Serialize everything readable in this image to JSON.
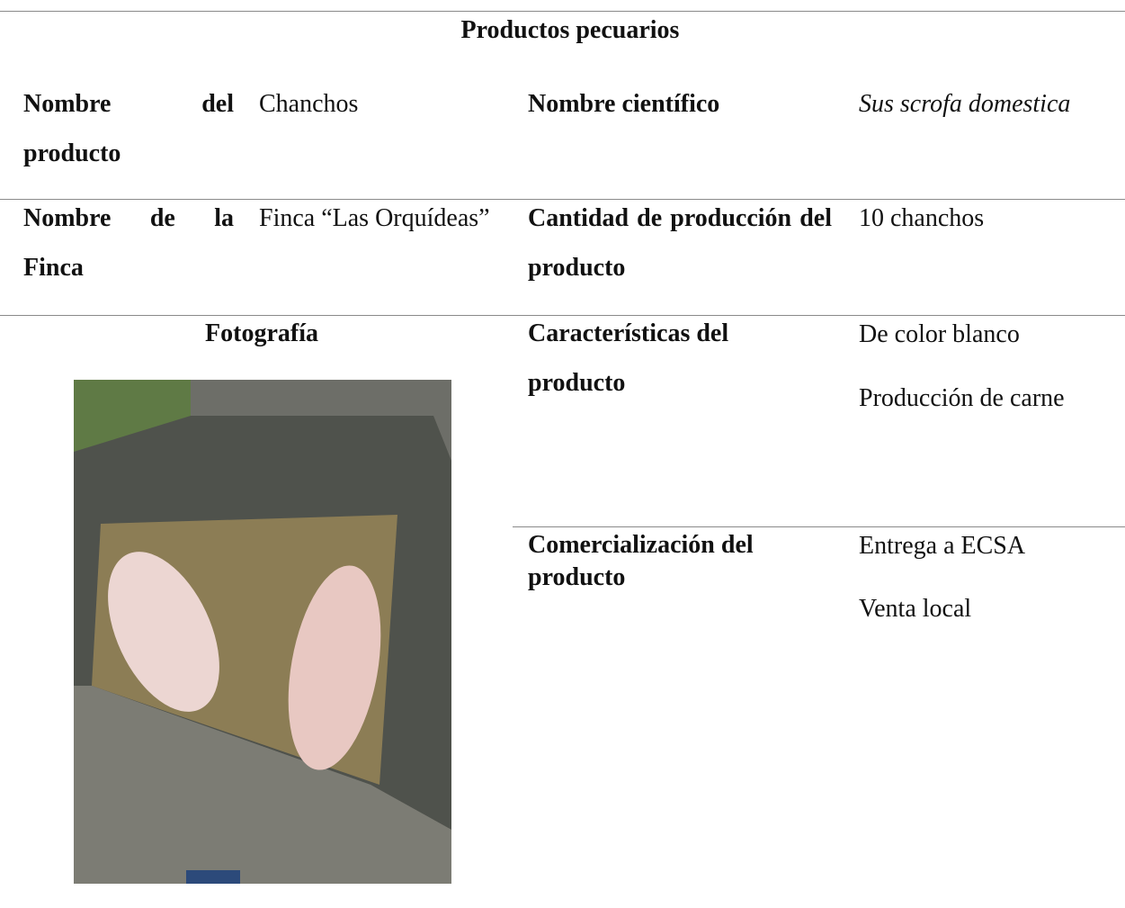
{
  "title": "Productos pecuarios",
  "product_name": {
    "label": "Nombre del producto",
    "value": "Chanchos"
  },
  "scientific_name": {
    "label": "Nombre científico",
    "value": "Sus scrofa domestica"
  },
  "farm": {
    "label": "Nombre de la Finca",
    "value": "Finca “Las Orquídeas”"
  },
  "quantity": {
    "label": "Cantidad de producción del producto",
    "value": "10 chanchos"
  },
  "photo": {
    "label": "Fotografía"
  },
  "features": {
    "label": "Características del producto",
    "values": [
      "De color blanco",
      "Producción de carne"
    ]
  },
  "commercialization": {
    "label": "Comercialización del producto",
    "values": [
      "Entrega a ECSA",
      "Venta local"
    ]
  }
}
